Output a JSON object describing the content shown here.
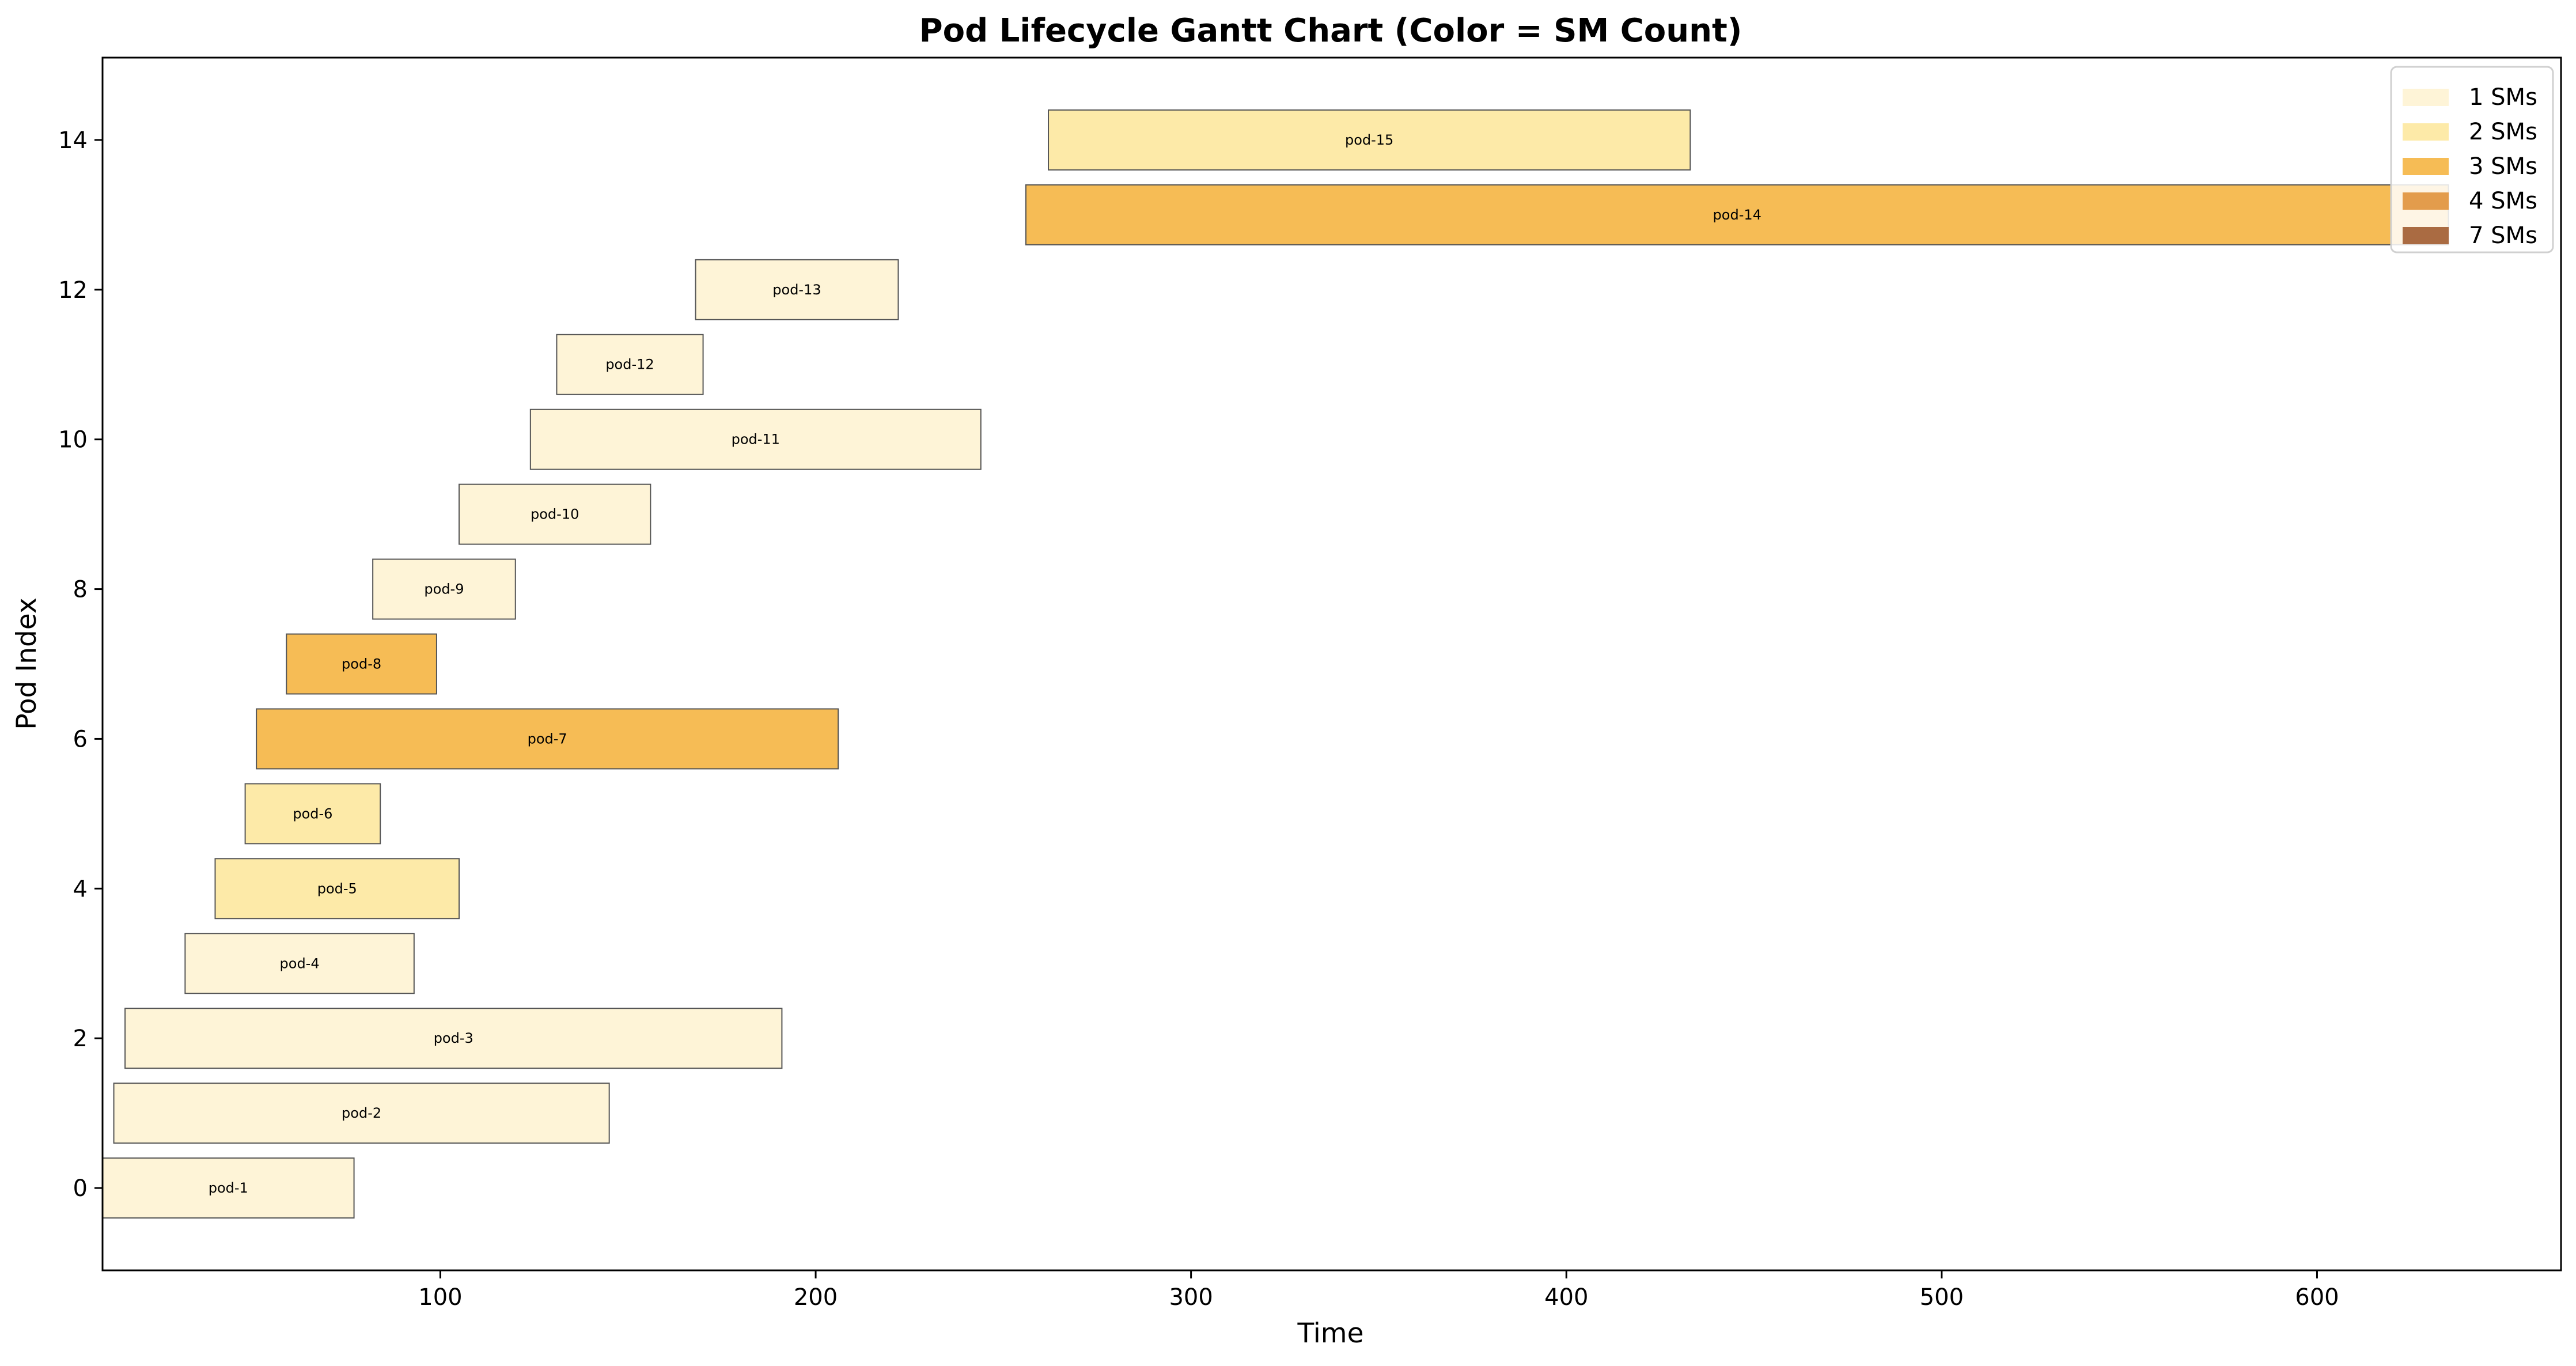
{
  "chart_data": {
    "type": "gantt",
    "title": "Pod Lifecycle Gantt Chart (Color = SM Count)",
    "xlabel": "Time",
    "ylabel": "Pod Index",
    "xlim": [
      10,
      665
    ],
    "ylim": [
      -1.1,
      15.1
    ],
    "xticks": [
      100,
      200,
      300,
      400,
      500,
      600
    ],
    "yticks": [
      0,
      2,
      4,
      6,
      8,
      10,
      12,
      14
    ],
    "grid": false,
    "legend": {
      "placement": "top-right",
      "entries": [
        {
          "label": "1 SMs",
          "sms": 1,
          "color": "#FEF4D7"
        },
        {
          "label": "2 SMs",
          "sms": 2,
          "color": "#FDEAA8"
        },
        {
          "label": "3 SMs",
          "sms": 3,
          "color": "#F6BC55"
        },
        {
          "label": "4 SMs",
          "sms": 4,
          "color": "#E39C4C"
        },
        {
          "label": "7 SMs",
          "sms": 7,
          "color": "#AA6B42"
        }
      ]
    },
    "pods": [
      {
        "name": "pod-1",
        "index": 0,
        "start": 10,
        "end": 77,
        "sms": 1
      },
      {
        "name": "pod-2",
        "index": 1,
        "start": 13,
        "end": 145,
        "sms": 1
      },
      {
        "name": "pod-3",
        "index": 2,
        "start": 16,
        "end": 191,
        "sms": 1
      },
      {
        "name": "pod-4",
        "index": 3,
        "start": 32,
        "end": 93,
        "sms": 1
      },
      {
        "name": "pod-5",
        "index": 4,
        "start": 40,
        "end": 105,
        "sms": 2
      },
      {
        "name": "pod-6",
        "index": 5,
        "start": 48,
        "end": 84,
        "sms": 2
      },
      {
        "name": "pod-7",
        "index": 6,
        "start": 51,
        "end": 206,
        "sms": 3
      },
      {
        "name": "pod-8",
        "index": 7,
        "start": 59,
        "end": 99,
        "sms": 3
      },
      {
        "name": "pod-9",
        "index": 8,
        "start": 82,
        "end": 120,
        "sms": 1
      },
      {
        "name": "pod-10",
        "index": 9,
        "start": 105,
        "end": 156,
        "sms": 1
      },
      {
        "name": "pod-11",
        "index": 10,
        "start": 124,
        "end": 244,
        "sms": 1
      },
      {
        "name": "pod-12",
        "index": 11,
        "start": 131,
        "end": 170,
        "sms": 1
      },
      {
        "name": "pod-13",
        "index": 12,
        "start": 168,
        "end": 222,
        "sms": 1
      },
      {
        "name": "pod-14",
        "index": 13,
        "start": 256,
        "end": 635,
        "sms": 3
      },
      {
        "name": "pod-15",
        "index": 14,
        "start": 262,
        "end": 433,
        "sms": 2
      }
    ]
  }
}
